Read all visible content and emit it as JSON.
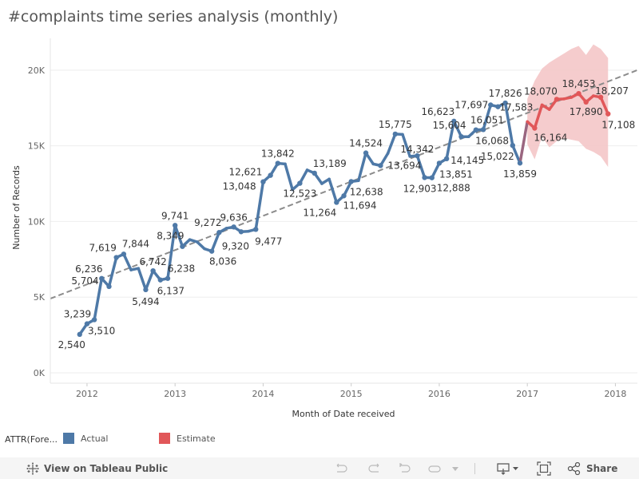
{
  "title": "#complaints time series analysis (monthly)",
  "legend": {
    "title": "ATTR(Fore...",
    "items": [
      {
        "label": "Actual",
        "color": "#4e79a7"
      },
      {
        "label": "Estimate",
        "color": "#e15759"
      }
    ]
  },
  "toolbar": {
    "view_label": "View on Tableau Public",
    "share_label": "Share",
    "icons": [
      "tableau-logo-icon",
      "undo-icon",
      "redo-icon",
      "revert-icon",
      "refresh-icon",
      "pause-dropdown-icon",
      "download-icon",
      "fullscreen-icon",
      "share-icon"
    ]
  },
  "chart_data": {
    "type": "line",
    "title": "#complaints time series analysis (monthly)",
    "xlabel": "Month of Date received",
    "ylabel": "Number of Records",
    "xlim": [
      "2011-08",
      "2018-04"
    ],
    "ylim": [
      0,
      22100
    ],
    "x_ticks": [
      "2012",
      "2013",
      "2014",
      "2015",
      "2016",
      "2017",
      "2018"
    ],
    "y_ticks": [
      {
        "value": 0,
        "label": "0K"
      },
      {
        "value": 5000,
        "label": "5K"
      },
      {
        "value": 10000,
        "label": "10K"
      },
      {
        "value": 15000,
        "label": "15K"
      },
      {
        "value": 20000,
        "label": "20K"
      }
    ],
    "grid": true,
    "legend_position": "bottom",
    "series": [
      {
        "name": "Actual",
        "color": "#4e79a7",
        "x": [
          "2011-12",
          "2012-01",
          "2012-02",
          "2012-03",
          "2012-04",
          "2012-05",
          "2012-06",
          "2012-07",
          "2012-08",
          "2012-09",
          "2012-10",
          "2012-11",
          "2012-12",
          "2013-01",
          "2013-02",
          "2013-03",
          "2013-04",
          "2013-05",
          "2013-06",
          "2013-07",
          "2013-08",
          "2013-09",
          "2013-10",
          "2013-11",
          "2013-12",
          "2014-01",
          "2014-02",
          "2014-03",
          "2014-04",
          "2014-05",
          "2014-06",
          "2014-07",
          "2014-08",
          "2014-09",
          "2014-10",
          "2014-11",
          "2014-12",
          "2015-01",
          "2015-02",
          "2015-03",
          "2015-04",
          "2015-05",
          "2015-06",
          "2015-07",
          "2015-08",
          "2015-09",
          "2015-10",
          "2015-11",
          "2015-12",
          "2016-01",
          "2016-02",
          "2016-03",
          "2016-04",
          "2016-05",
          "2016-06",
          "2016-07",
          "2016-08",
          "2016-09",
          "2016-10",
          "2016-11",
          "2016-12"
        ],
        "values": [
          2540,
          3239,
          3510,
          6236,
          5704,
          7619,
          7844,
          6800,
          6900,
          5494,
          6742,
          6137,
          6238,
          9741,
          8349,
          8800,
          8650,
          8200,
          8036,
          9272,
          9550,
          9636,
          9320,
          9350,
          9477,
          12621,
          13048,
          13842,
          13800,
          12100,
          12523,
          13400,
          13189,
          12500,
          12800,
          11264,
          11694,
          12638,
          12700,
          14524,
          13800,
          13694,
          14500,
          15775,
          15750,
          14300,
          14342,
          12903,
          12888,
          13851,
          14145,
          16623,
          15604,
          15600,
          16051,
          16068,
          17697,
          17583,
          17826,
          15022,
          13859
        ],
        "labeled": [
          2540,
          3239,
          3510,
          6236,
          5704,
          7619,
          7844,
          5494,
          6742,
          6137,
          6238,
          9741,
          8349,
          8036,
          9272,
          9636,
          9320,
          9477,
          12621,
          13048,
          13842,
          12523,
          13189,
          11264,
          11694,
          12638,
          14524,
          13694,
          15775,
          14342,
          12903,
          12888,
          13851,
          14145,
          16623,
          15604,
          16051,
          16068,
          17697,
          17583,
          17826,
          15022,
          13859
        ]
      },
      {
        "name": "Estimate",
        "color": "#e15759",
        "x": [
          "2017-01",
          "2017-02",
          "2017-03",
          "2017-04",
          "2017-05",
          "2017-06",
          "2017-07",
          "2017-08",
          "2017-09",
          "2017-10",
          "2017-11",
          "2017-12"
        ],
        "values": [
          16600,
          16164,
          17700,
          17400,
          18070,
          18100,
          18200,
          18453,
          17890,
          18300,
          18207,
          17108
        ],
        "upper": [
          18100,
          19300,
          20100,
          20500,
          20800,
          21100,
          21400,
          21600,
          21000,
          21700,
          21400,
          20800
        ],
        "lower": [
          15100,
          14100,
          15600,
          14900,
          15300,
          15500,
          15400,
          15300,
          14800,
          14600,
          14300,
          13600
        ],
        "band_color": "#f4c7c8",
        "labeled": [
          16164,
          18070,
          18453,
          17890,
          18207,
          17108
        ]
      }
    ],
    "trend_line": {
      "style": "dashed",
      "color": "#8c8c8c",
      "points": [
        [
          "2011-08",
          4900
        ],
        [
          "2018-04",
          20000
        ]
      ]
    }
  }
}
